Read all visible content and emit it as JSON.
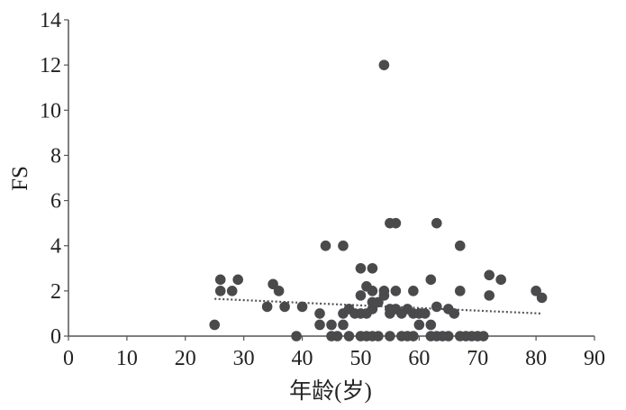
{
  "chart_data": {
    "type": "scatter",
    "title": "",
    "xlabel": "年龄(岁)",
    "ylabel": "FS",
    "xlim": [
      0,
      90
    ],
    "ylim": [
      0,
      14
    ],
    "xticks": [
      0,
      10,
      20,
      30,
      40,
      50,
      60,
      70,
      80,
      90
    ],
    "yticks": [
      0,
      2,
      4,
      6,
      8,
      10,
      12,
      14
    ],
    "grid": false,
    "legend": "none",
    "colors": {
      "point": "#4a4a4d",
      "trendline": "#555555",
      "axis": "#555555"
    },
    "points": [
      [
        25,
        0.5
      ],
      [
        26,
        2.5
      ],
      [
        26,
        2.0
      ],
      [
        28,
        2.0
      ],
      [
        29,
        2.5
      ],
      [
        34,
        1.3
      ],
      [
        35,
        2.3
      ],
      [
        36,
        2.0
      ],
      [
        37,
        1.3
      ],
      [
        39,
        0
      ],
      [
        40,
        1.3
      ],
      [
        43,
        1.0
      ],
      [
        43,
        0.5
      ],
      [
        44,
        4.0
      ],
      [
        45,
        0.5
      ],
      [
        45,
        0
      ],
      [
        46,
        0
      ],
      [
        47,
        4.0
      ],
      [
        47,
        1.0
      ],
      [
        47,
        0.5
      ],
      [
        48,
        1.2
      ],
      [
        48,
        0
      ],
      [
        49,
        1.0
      ],
      [
        50,
        3.0
      ],
      [
        50,
        1.8
      ],
      [
        50,
        1.0
      ],
      [
        50,
        0
      ],
      [
        51,
        2.2
      ],
      [
        51,
        1.0
      ],
      [
        51,
        0
      ],
      [
        52,
        3.0
      ],
      [
        52,
        2.0
      ],
      [
        52,
        1.5
      ],
      [
        52,
        1.2
      ],
      [
        52,
        0
      ],
      [
        53,
        1.5
      ],
      [
        53,
        0
      ],
      [
        54,
        12.0
      ],
      [
        54,
        2.0
      ],
      [
        54,
        1.8
      ],
      [
        55,
        5.0
      ],
      [
        55,
        1.2
      ],
      [
        55,
        1.0
      ],
      [
        55,
        0
      ],
      [
        56,
        5.0
      ],
      [
        56,
        2.0
      ],
      [
        56,
        1.2
      ],
      [
        57,
        1.0
      ],
      [
        57,
        0
      ],
      [
        58,
        1.2
      ],
      [
        58,
        0
      ],
      [
        59,
        2.0
      ],
      [
        59,
        1.0
      ],
      [
        59,
        0
      ],
      [
        60,
        1.0
      ],
      [
        60,
        0.5
      ],
      [
        61,
        1.0
      ],
      [
        62,
        2.5
      ],
      [
        62,
        0.5
      ],
      [
        62,
        0
      ],
      [
        63,
        5.0
      ],
      [
        63,
        1.3
      ],
      [
        63,
        0
      ],
      [
        64,
        0
      ],
      [
        65,
        1.2
      ],
      [
        65,
        0
      ],
      [
        66,
        1.0
      ],
      [
        67,
        4.0
      ],
      [
        67,
        2.0
      ],
      [
        67,
        0
      ],
      [
        68,
        0
      ],
      [
        69,
        0
      ],
      [
        70,
        0
      ],
      [
        71,
        0
      ],
      [
        72,
        2.7
      ],
      [
        72,
        1.8
      ],
      [
        74,
        2.5
      ],
      [
        80,
        2.0
      ],
      [
        81,
        1.7
      ]
    ],
    "trendline": {
      "style": "dotted",
      "x": [
        25,
        81
      ],
      "y": [
        1.65,
        1.0
      ]
    }
  }
}
